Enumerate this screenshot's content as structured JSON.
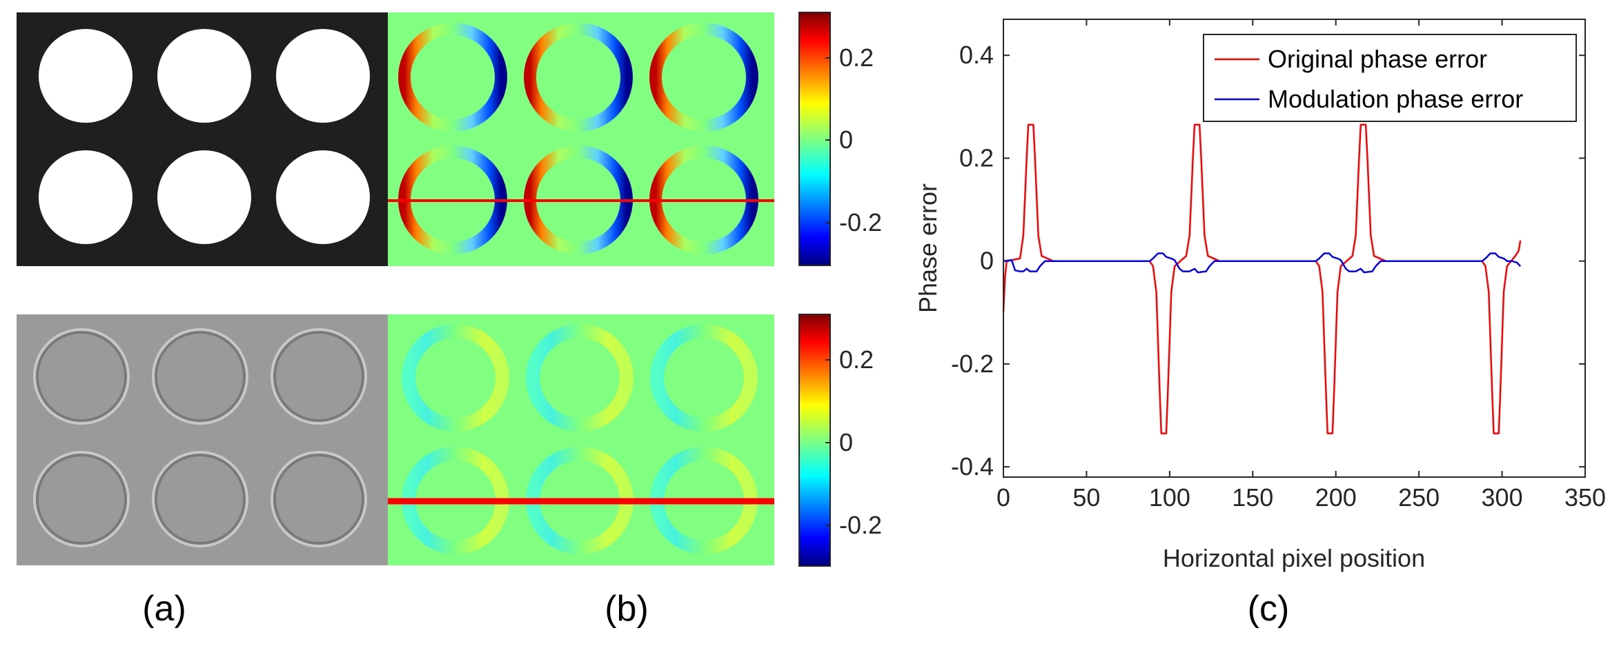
{
  "panels": {
    "a": "(a)",
    "b": "(b)",
    "c": "(c)"
  },
  "colorbar_top": {
    "ticks": [
      "0.2",
      "0",
      "-0.2"
    ]
  },
  "colorbar_bottom": {
    "ticks": [
      "0.2",
      "0",
      "-0.2"
    ]
  },
  "colors": {
    "original": "#ff0000",
    "modulation": "#0000ff",
    "map_bg": "#80ff80",
    "binary_bg": "#1f1f1f",
    "grey_bg": "#9a9a9a"
  },
  "chart_data": {
    "type": "line",
    "title": "",
    "xlabel": "Horizontal pixel position",
    "ylabel": "Phase error",
    "xlim": [
      0,
      350
    ],
    "ylim": [
      -0.42,
      0.47
    ],
    "xticks": [
      "0",
      "50",
      "100",
      "150",
      "200",
      "250",
      "300",
      "350"
    ],
    "yticks": [
      "0.4",
      "0.2",
      "0",
      "-0.2",
      "-0.4"
    ],
    "legend_position": "top-right",
    "series": [
      {
        "name": "Original phase error",
        "color": "#ff0000",
        "points": [
          [
            0,
            -0.1
          ],
          [
            1,
            -0.03
          ],
          [
            2,
            0
          ],
          [
            10,
            0.005
          ],
          [
            12,
            0.05
          ],
          [
            14,
            0.2
          ],
          [
            15,
            0.265
          ],
          [
            18,
            0.265
          ],
          [
            19,
            0.2
          ],
          [
            21,
            0.05
          ],
          [
            23,
            0.01
          ],
          [
            30,
            0
          ],
          [
            88,
            0
          ],
          [
            90,
            -0.01
          ],
          [
            92,
            -0.06
          ],
          [
            94,
            -0.25
          ],
          [
            95,
            -0.335
          ],
          [
            98,
            -0.335
          ],
          [
            99,
            -0.25
          ],
          [
            101,
            -0.06
          ],
          [
            103,
            -0.01
          ],
          [
            110,
            0.01
          ],
          [
            112,
            0.05
          ],
          [
            114,
            0.2
          ],
          [
            115,
            0.265
          ],
          [
            118,
            0.265
          ],
          [
            119,
            0.2
          ],
          [
            121,
            0.05
          ],
          [
            123,
            0.01
          ],
          [
            130,
            0
          ],
          [
            188,
            0
          ],
          [
            190,
            -0.01
          ],
          [
            192,
            -0.06
          ],
          [
            194,
            -0.25
          ],
          [
            195,
            -0.335
          ],
          [
            198,
            -0.335
          ],
          [
            199,
            -0.25
          ],
          [
            201,
            -0.06
          ],
          [
            203,
            -0.01
          ],
          [
            210,
            0.01
          ],
          [
            212,
            0.05
          ],
          [
            214,
            0.2
          ],
          [
            215,
            0.265
          ],
          [
            218,
            0.265
          ],
          [
            219,
            0.2
          ],
          [
            221,
            0.05
          ],
          [
            223,
            0.01
          ],
          [
            230,
            0
          ],
          [
            288,
            0
          ],
          [
            290,
            -0.01
          ],
          [
            292,
            -0.06
          ],
          [
            294,
            -0.25
          ],
          [
            295,
            -0.335
          ],
          [
            298,
            -0.335
          ],
          [
            299,
            -0.25
          ],
          [
            301,
            -0.06
          ],
          [
            303,
            -0.01
          ],
          [
            308,
            0.01
          ],
          [
            310,
            0.02
          ],
          [
            311,
            0.04
          ]
        ]
      },
      {
        "name": "Modulation phase error",
        "color": "#0000ff",
        "points": [
          [
            0,
            0
          ],
          [
            5,
            0.002
          ],
          [
            7,
            -0.018
          ],
          [
            10,
            -0.02
          ],
          [
            12,
            -0.02
          ],
          [
            14,
            -0.015
          ],
          [
            16,
            -0.02
          ],
          [
            20,
            -0.02
          ],
          [
            22,
            -0.01
          ],
          [
            25,
            0
          ],
          [
            88,
            0
          ],
          [
            90,
            0.005
          ],
          [
            93,
            0.015
          ],
          [
            96,
            0.015
          ],
          [
            98,
            0.008
          ],
          [
            101,
            0.005
          ],
          [
            103,
            0.002
          ],
          [
            106,
            -0.015
          ],
          [
            108,
            -0.02
          ],
          [
            112,
            -0.02
          ],
          [
            115,
            -0.015
          ],
          [
            117,
            -0.022
          ],
          [
            122,
            -0.02
          ],
          [
            124,
            -0.01
          ],
          [
            127,
            0
          ],
          [
            188,
            0
          ],
          [
            190,
            0.005
          ],
          [
            193,
            0.015
          ],
          [
            196,
            0.015
          ],
          [
            198,
            0.008
          ],
          [
            201,
            0.005
          ],
          [
            203,
            0.002
          ],
          [
            206,
            -0.015
          ],
          [
            208,
            -0.02
          ],
          [
            212,
            -0.02
          ],
          [
            215,
            -0.015
          ],
          [
            217,
            -0.022
          ],
          [
            222,
            -0.02
          ],
          [
            224,
            -0.01
          ],
          [
            227,
            0
          ],
          [
            288,
            0
          ],
          [
            290,
            0.005
          ],
          [
            293,
            0.015
          ],
          [
            296,
            0.015
          ],
          [
            298,
            0.008
          ],
          [
            301,
            0.005
          ],
          [
            303,
            0
          ],
          [
            306,
            0
          ],
          [
            309,
            -0.003
          ],
          [
            311,
            -0.01
          ]
        ]
      }
    ]
  }
}
